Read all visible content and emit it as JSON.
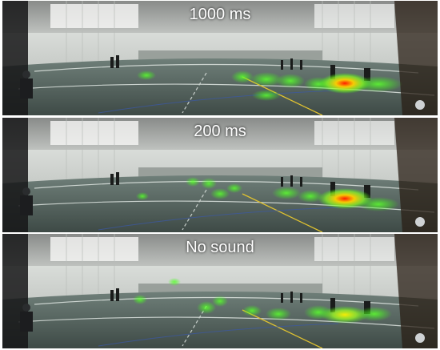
{
  "panels": [
    {
      "label": "1000 ms"
    },
    {
      "label": "200 ms"
    },
    {
      "label": "No sound"
    }
  ]
}
